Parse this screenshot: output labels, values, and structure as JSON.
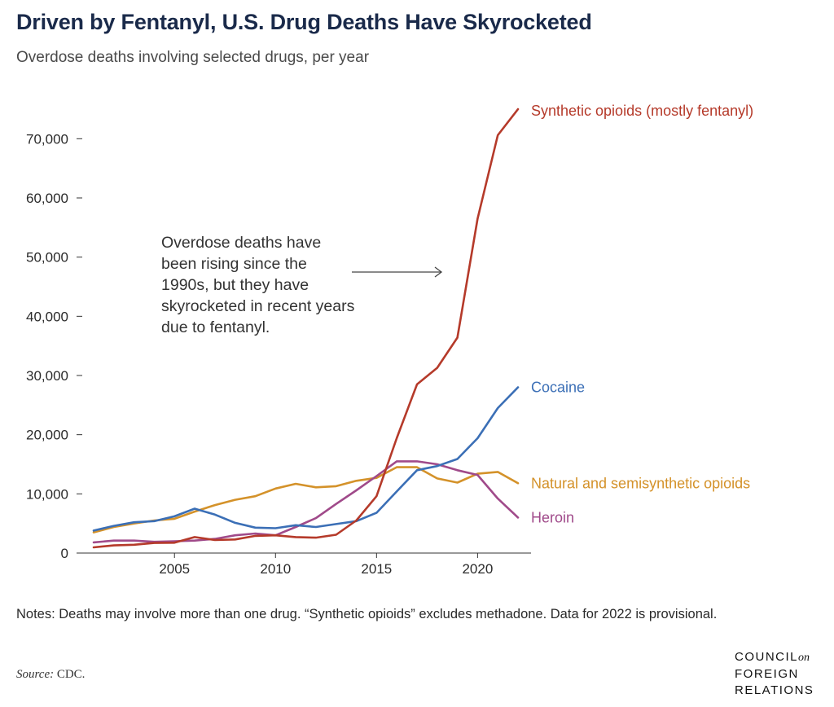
{
  "title": "Driven by Fentanyl, U.S. Drug Deaths Have Skyrocketed",
  "subtitle": "Overdose deaths involving selected drugs, per year",
  "annotation": "Overdose deaths have been rising since the 1990s, but they have skyrocketed in recent years due to fentanyl.",
  "notes": "Notes: Deaths may involve more than one drug. “Synthetic opioids” excludes methadone. Data for 2022 is provisional.",
  "source_prefix": "Source:",
  "source_value": "CDC.",
  "logo": {
    "line1": "COUNCIL",
    "line1_suffix": "on",
    "line2": "FOREIGN",
    "line3": "RELATIONS"
  },
  "chart_data": {
    "type": "line",
    "title": "Driven by Fentanyl, U.S. Drug Deaths Have Skyrocketed",
    "subtitle": "Overdose deaths involving selected drugs, per year",
    "xlabel": "",
    "ylabel": "",
    "xlim": [
      2001,
      2022
    ],
    "ylim": [
      0,
      75000
    ],
    "x_ticks": [
      2005,
      2010,
      2015,
      2020
    ],
    "y_ticks": [
      0,
      10000,
      20000,
      30000,
      40000,
      50000,
      60000,
      70000
    ],
    "y_tick_labels": [
      "0",
      "10,000",
      "20,000",
      "30,000",
      "40,000",
      "50,000",
      "60,000",
      "70,000"
    ],
    "grid": false,
    "legend": "direct labels at line ends",
    "x": [
      2001,
      2002,
      2003,
      2004,
      2005,
      2006,
      2007,
      2008,
      2009,
      2010,
      2011,
      2012,
      2013,
      2014,
      2015,
      2016,
      2017,
      2018,
      2019,
      2020,
      2021,
      2022
    ],
    "series": [
      {
        "name": "Synthetic opioids (mostly fentanyl)",
        "color": "#b53a2a",
        "values": [
          960,
          1300,
          1400,
          1700,
          1750,
          2700,
          2200,
          2300,
          2900,
          3000,
          2700,
          2600,
          3100,
          5500,
          9600,
          19400,
          28500,
          31300,
          36400,
          56500,
          70600,
          75000
        ]
      },
      {
        "name": "Cocaine",
        "color": "#3b6fb6",
        "values": [
          3800,
          4600,
          5200,
          5400,
          6200,
          7500,
          6500,
          5100,
          4300,
          4200,
          4700,
          4400,
          4900,
          5400,
          6800,
          10400,
          14000,
          14700,
          15900,
          19400,
          24500,
          28000
        ]
      },
      {
        "name": "Natural and semisynthetic opioids",
        "color": "#d4922a",
        "values": [
          3500,
          4400,
          5000,
          5500,
          5800,
          7000,
          8100,
          9000,
          9600,
          10900,
          11700,
          11100,
          11300,
          12200,
          12700,
          14500,
          14500,
          12600,
          11900,
          13400,
          13700,
          11800
        ]
      },
      {
        "name": "Heroin",
        "color": "#a04a8a",
        "values": [
          1800,
          2100,
          2100,
          1900,
          2000,
          2100,
          2400,
          3000,
          3300,
          3000,
          4400,
          5900,
          8300,
          10600,
          13000,
          15500,
          15500,
          15000,
          14000,
          13200,
          9200,
          6000
        ]
      }
    ]
  }
}
